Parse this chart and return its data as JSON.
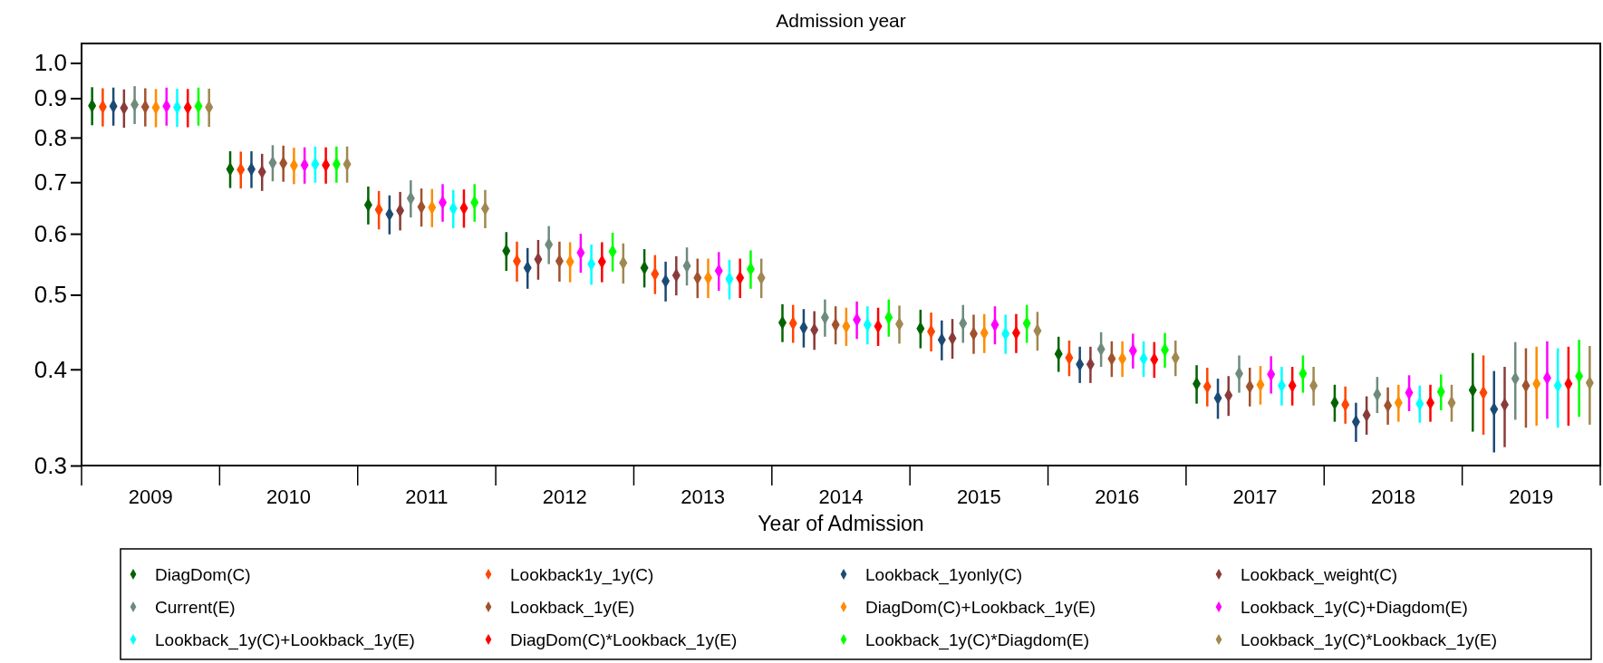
{
  "chart_data": {
    "type": "scatter",
    "title": "Admission year",
    "xlabel": "Year of Admission",
    "categories": [
      "2009",
      "2010",
      "2011",
      "2012",
      "2013",
      "2014",
      "2015",
      "2016",
      "2017",
      "2018",
      "2019"
    ],
    "log": "y",
    "ylim": [
      0.3,
      1.06
    ],
    "yticks": [
      0.3,
      0.4,
      0.5,
      0.6,
      0.7,
      0.8,
      0.9,
      {
        "value": 1,
        "label": "1.0"
      }
    ],
    "grid": false,
    "legend": "bottom",
    "marker": "diamond",
    "series": [
      {
        "name": "DiagDom(C)",
        "color": "#006400",
        "values": [
          0.88,
          0.728,
          0.654,
          0.57,
          0.542,
          0.46,
          0.452,
          0.419,
          0.383,
          0.362,
          0.376
        ],
        "errors": [
          0.05,
          0.04,
          0.037,
          0.033,
          0.031,
          0.026,
          0.026,
          0.022,
          0.022,
          0.02,
          0.044
        ]
      },
      {
        "name": "Lookback1y_1y(C)",
        "color": "#ff4500",
        "values": [
          0.877,
          0.727,
          0.645,
          0.553,
          0.532,
          0.459,
          0.448,
          0.414,
          0.38,
          0.36,
          0.373
        ],
        "errors": [
          0.05,
          0.04,
          0.037,
          0.033,
          0.031,
          0.026,
          0.026,
          0.022,
          0.022,
          0.02,
          0.044
        ]
      },
      {
        "name": "Lookback_1yonly(C)",
        "color": "#1c4a75",
        "values": [
          0.879,
          0.728,
          0.636,
          0.542,
          0.521,
          0.453,
          0.437,
          0.406,
          0.367,
          0.342,
          0.355
        ],
        "errors": [
          0.05,
          0.04,
          0.037,
          0.033,
          0.031,
          0.026,
          0.026,
          0.022,
          0.022,
          0.02,
          0.043
        ]
      },
      {
        "name": "Lookback_weight(C)",
        "color": "#8b3a3a",
        "values": [
          0.874,
          0.722,
          0.643,
          0.556,
          0.53,
          0.45,
          0.439,
          0.406,
          0.37,
          0.349,
          0.36
        ],
        "errors": [
          0.05,
          0.04,
          0.037,
          0.033,
          0.031,
          0.026,
          0.026,
          0.022,
          0.022,
          0.02,
          0.043
        ]
      },
      {
        "name": "Current(E)",
        "color": "#6e8b7d",
        "values": [
          0.883,
          0.742,
          0.667,
          0.581,
          0.545,
          0.467,
          0.459,
          0.425,
          0.395,
          0.371,
          0.389
        ],
        "errors": [
          0.05,
          0.04,
          0.037,
          0.033,
          0.031,
          0.026,
          0.026,
          0.022,
          0.022,
          0.02,
          0.045
        ]
      },
      {
        "name": "Lookback_1y(E)",
        "color": "#a0522d",
        "values": [
          0.877,
          0.741,
          0.65,
          0.553,
          0.526,
          0.457,
          0.445,
          0.413,
          0.38,
          0.359,
          0.381
        ],
        "errors": [
          0.05,
          0.04,
          0.037,
          0.033,
          0.031,
          0.026,
          0.026,
          0.022,
          0.022,
          0.02,
          0.045
        ]
      },
      {
        "name": "DiagDom(C)+Lookback_1y(E)",
        "color": "#ff8c00",
        "values": [
          0.875,
          0.736,
          0.649,
          0.552,
          0.526,
          0.455,
          0.446,
          0.413,
          0.382,
          0.362,
          0.383
        ],
        "errors": [
          0.05,
          0.04,
          0.037,
          0.033,
          0.031,
          0.026,
          0.026,
          0.022,
          0.022,
          0.02,
          0.045
        ]
      },
      {
        "name": "Lookback_1y(C)+Diagdom(E)",
        "color": "#ff00ff",
        "values": [
          0.879,
          0.737,
          0.659,
          0.567,
          0.537,
          0.464,
          0.457,
          0.423,
          0.394,
          0.373,
          0.39
        ],
        "errors": [
          0.05,
          0.04,
          0.037,
          0.033,
          0.031,
          0.026,
          0.026,
          0.022,
          0.022,
          0.02,
          0.045
        ]
      },
      {
        "name": "Lookback_1y(C)+Lookback_1y(E)",
        "color": "#00ffff",
        "values": [
          0.876,
          0.739,
          0.647,
          0.548,
          0.524,
          0.457,
          0.445,
          0.413,
          0.381,
          0.361,
          0.381
        ],
        "errors": [
          0.05,
          0.04,
          0.037,
          0.033,
          0.031,
          0.026,
          0.026,
          0.022,
          0.022,
          0.02,
          0.045
        ]
      },
      {
        "name": "DiagDom(C)*Lookback_1y(E)",
        "color": "#ff0000",
        "values": [
          0.875,
          0.737,
          0.648,
          0.552,
          0.526,
          0.455,
          0.446,
          0.412,
          0.381,
          0.362,
          0.383
        ],
        "errors": [
          0.05,
          0.04,
          0.037,
          0.033,
          0.031,
          0.026,
          0.026,
          0.022,
          0.022,
          0.02,
          0.045
        ]
      },
      {
        "name": "Lookback_1y(C)*Diagdom(E)",
        "color": "#00ff00",
        "values": [
          0.879,
          0.739,
          0.659,
          0.569,
          0.54,
          0.467,
          0.459,
          0.424,
          0.395,
          0.374,
          0.392
        ],
        "errors": [
          0.05,
          0.04,
          0.037,
          0.033,
          0.031,
          0.026,
          0.026,
          0.022,
          0.022,
          0.02,
          0.045
        ]
      },
      {
        "name": "Lookback_1y(C)*Lookback_1y(E)",
        "color": "#a08850",
        "values": [
          0.876,
          0.739,
          0.647,
          0.55,
          0.526,
          0.458,
          0.449,
          0.414,
          0.381,
          0.362,
          0.384
        ],
        "errors": [
          0.05,
          0.04,
          0.037,
          0.033,
          0.031,
          0.026,
          0.026,
          0.022,
          0.022,
          0.02,
          0.045
        ]
      }
    ]
  }
}
